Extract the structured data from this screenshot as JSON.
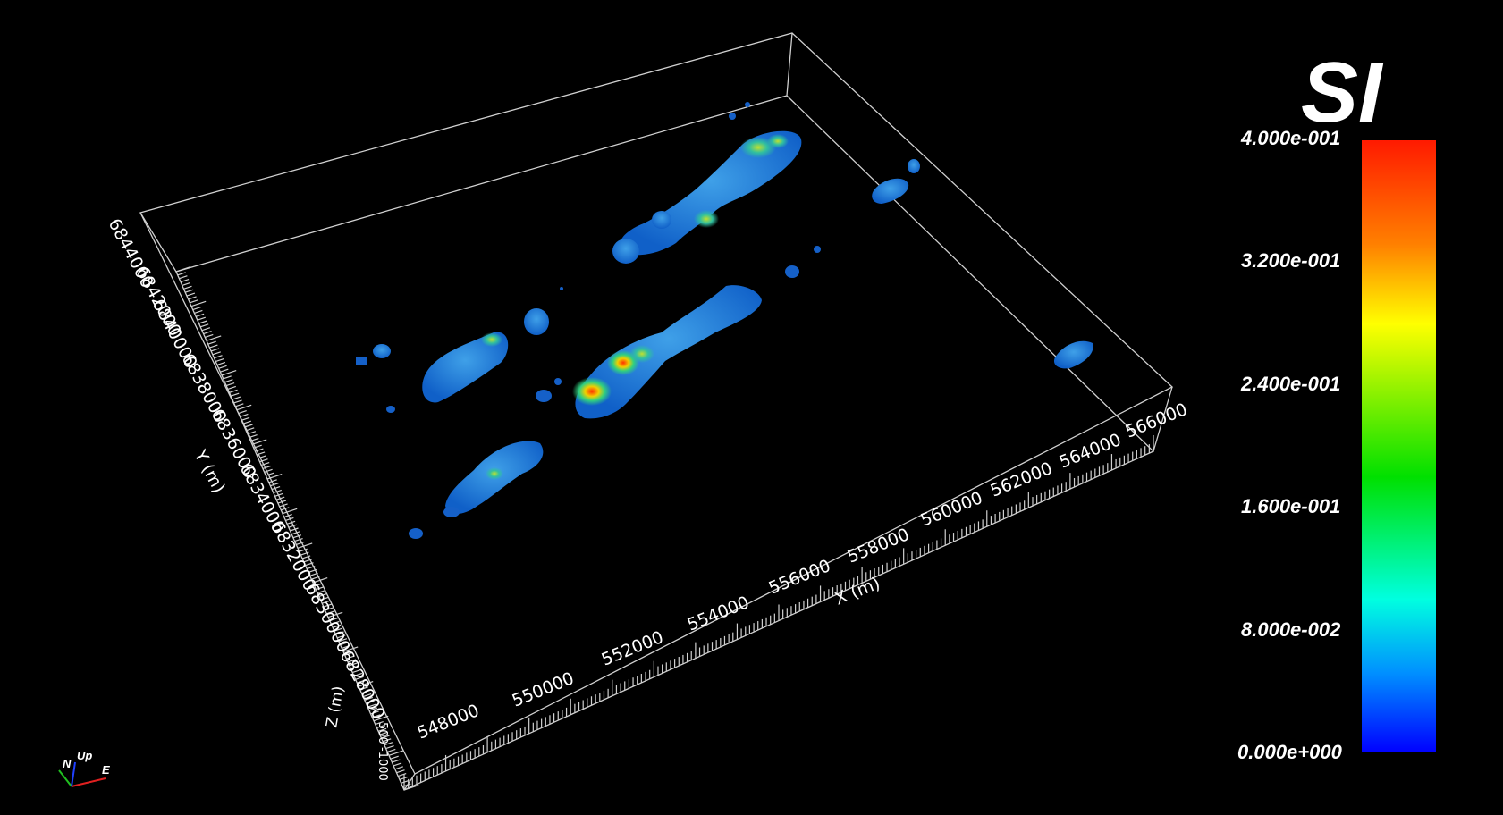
{
  "colorbar": {
    "title": "SI",
    "ticks": [
      "4.000e-001",
      "3.200e-001",
      "2.400e-001",
      "1.600e-001",
      "8.000e-002",
      "0.000e+000"
    ],
    "colors": [
      "#ff1a00",
      "#ff8000",
      "#ffff00",
      "#00e000",
      "#00ffe0",
      "#0090ff",
      "#0000ff"
    ]
  },
  "axes": {
    "x": {
      "title": "X (m)",
      "ticks": [
        "548000",
        "550000",
        "552000",
        "554000",
        "556000",
        "558000",
        "560000",
        "562000",
        "564000",
        "566000"
      ]
    },
    "y": {
      "title": "Y (m)",
      "ticks": [
        "6844000",
        "6842000",
        "6840000",
        "6838000",
        "6836000",
        "6834000",
        "6832000",
        "6830000",
        "6828000"
      ]
    },
    "z": {
      "title": "Z (m)",
      "ticks": [
        "500",
        "-1000"
      ]
    }
  },
  "orientation": {
    "n": "N",
    "up": "Up",
    "e": "E"
  }
}
